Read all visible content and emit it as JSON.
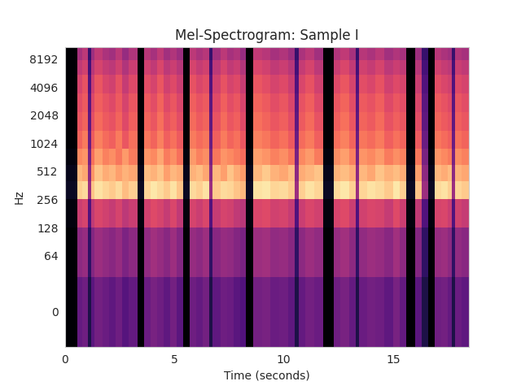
{
  "chart_data": {
    "type": "heatmap",
    "title": "Mel-Spectrogram: Sample I",
    "xlabel": "Time (seconds)",
    "ylabel": "Hz",
    "xlim": [
      0,
      18.47
    ],
    "xticks": [
      0,
      5,
      10,
      15
    ],
    "ylim": [
      -40,
      11025
    ],
    "yticks": [
      0,
      64,
      128,
      256,
      512,
      1024,
      2048,
      4096,
      8192
    ],
    "log": "y",
    "color": "magma",
    "zlim": [
      -80,
      0
    ],
    "x_edges": [
      0,
      0.55,
      0.8,
      1.05,
      1.2,
      1.35,
      1.7,
      2.0,
      2.3,
      2.6,
      2.9,
      3.3,
      3.6,
      3.9,
      4.2,
      4.5,
      4.8,
      5.1,
      5.4,
      5.7,
      6.0,
      6.3,
      6.6,
      6.75,
      7.1,
      7.4,
      7.7,
      8.0,
      8.25,
      8.6,
      9.0,
      9.4,
      9.8,
      10.2,
      10.5,
      10.7,
      11.0,
      11.4,
      11.8,
      12.3,
      12.6,
      13.0,
      13.3,
      13.45,
      13.8,
      14.2,
      14.6,
      15.0,
      15.3,
      15.6,
      16.0,
      16.3,
      16.6,
      16.9,
      17.2,
      17.5,
      17.7,
      17.85,
      18.15,
      18.47
    ],
    "y_edges": [
      -40,
      40,
      128,
      256,
      400,
      600,
      900,
      1400,
      2200,
      3500,
      5500,
      8000,
      11025
    ],
    "cells": [
      [
        -80,
        -56,
        -54,
        -70,
        -58,
        -53,
        -55,
        -57,
        -54,
        -59,
        -56,
        -80,
        -55,
        -52,
        -54,
        -57,
        -53,
        -58,
        -80,
        -54,
        -56,
        -53,
        -70,
        -57,
        -54,
        -55,
        -58,
        -60,
        -80,
        -53,
        -52,
        -55,
        -54,
        -57,
        -70,
        -56,
        -53,
        -55,
        -80,
        -54,
        -52,
        -56,
        -70,
        -55,
        -53,
        -54,
        -57,
        -52,
        -56,
        -80,
        -58,
        -70,
        -80,
        -54,
        -53,
        -56,
        -70,
        -55,
        -57
      ],
      [
        -80,
        -48,
        -46,
        -66,
        -50,
        -45,
        -47,
        -49,
        -46,
        -51,
        -48,
        -80,
        -47,
        -44,
        -46,
        -49,
        -45,
        -50,
        -80,
        -46,
        -48,
        -45,
        -66,
        -49,
        -46,
        -47,
        -50,
        -52,
        -80,
        -45,
        -44,
        -47,
        -46,
        -49,
        -66,
        -48,
        -45,
        -47,
        -80,
        -46,
        -44,
        -48,
        -66,
        -47,
        -45,
        -46,
        -49,
        -44,
        -48,
        -80,
        -50,
        -66,
        -80,
        -46,
        -45,
        -48,
        -66,
        -47,
        -49
      ],
      [
        -78,
        -36,
        -34,
        -60,
        -38,
        -33,
        -35,
        -37,
        -34,
        -39,
        -36,
        -78,
        -35,
        -32,
        -34,
        -37,
        -33,
        -38,
        -78,
        -34,
        -36,
        -33,
        -60,
        -37,
        -34,
        -35,
        -38,
        -40,
        -78,
        -33,
        -32,
        -35,
        -34,
        -37,
        -60,
        -36,
        -33,
        -35,
        -78,
        -34,
        -32,
        -36,
        -60,
        -35,
        -33,
        -34,
        -37,
        -32,
        -36,
        -78,
        -38,
        -60,
        -78,
        -34,
        -33,
        -36,
        -60,
        -35,
        -37
      ],
      [
        -75,
        -8,
        -6,
        -45,
        -10,
        -5,
        -7,
        -9,
        -6,
        -11,
        -8,
        -75,
        -7,
        -4,
        -6,
        -9,
        -5,
        -10,
        -75,
        -6,
        -8,
        -5,
        -45,
        -9,
        -6,
        -7,
        -10,
        -12,
        -75,
        -5,
        -4,
        -7,
        -6,
        -9,
        -45,
        -8,
        -5,
        -7,
        -75,
        -6,
        -4,
        -8,
        -45,
        -7,
        -5,
        -6,
        -9,
        -4,
        -8,
        -75,
        -10,
        -45,
        -75,
        -6,
        -5,
        -8,
        -45,
        -7,
        -9
      ],
      [
        -76,
        -12,
        -15,
        -48,
        -18,
        -10,
        -14,
        -12,
        -16,
        -13,
        -15,
        -76,
        -11,
        -13,
        -10,
        -16,
        -12,
        -14,
        -76,
        -13,
        -11,
        -15,
        -48,
        -12,
        -16,
        -10,
        -14,
        -17,
        -76,
        -12,
        -9,
        -13,
        -15,
        -11,
        -48,
        -14,
        -12,
        -10,
        -76,
        -13,
        -11,
        -14,
        -48,
        -12,
        -15,
        -10,
        -13,
        -11,
        -14,
        -76,
        -16,
        -48,
        -76,
        -12,
        -14,
        -11,
        -48,
        -13,
        -15
      ],
      [
        -78,
        -20,
        -18,
        -52,
        -24,
        -16,
        -21,
        -19,
        -23,
        -17,
        -22,
        -78,
        -18,
        -20,
        -15,
        -22,
        -19,
        -24,
        -78,
        -17,
        -21,
        -19,
        -52,
        -23,
        -18,
        -20,
        -22,
        -25,
        -78,
        -16,
        -18,
        -21,
        -19,
        -23,
        -52,
        -20,
        -17,
        -22,
        -78,
        -19,
        -16,
        -21,
        -52,
        -18,
        -20,
        -17,
        -22,
        -19,
        -21,
        -78,
        -23,
        -52,
        -78,
        -18,
        -20,
        -22,
        -52,
        -19,
        -21
      ],
      [
        -80,
        -26,
        -22,
        -55,
        -28,
        -21,
        -25,
        -27,
        -22,
        -29,
        -24,
        -80,
        -23,
        -26,
        -21,
        -27,
        -24,
        -28,
        -80,
        -22,
        -25,
        -23,
        -55,
        -27,
        -22,
        -26,
        -24,
        -29,
        -80,
        -21,
        -23,
        -26,
        -24,
        -28,
        -55,
        -25,
        -22,
        -27,
        -80,
        -24,
        -21,
        -26,
        -55,
        -23,
        -25,
        -22,
        -27,
        -24,
        -26,
        -80,
        -28,
        -55,
        -80,
        -23,
        -25,
        -27,
        -55,
        -24,
        -26
      ],
      [
        -80,
        -29,
        -26,
        -57,
        -31,
        -25,
        -28,
        -30,
        -26,
        -32,
        -27,
        -80,
        -26,
        -29,
        -24,
        -30,
        -27,
        -31,
        -80,
        -25,
        -28,
        -26,
        -57,
        -30,
        -25,
        -29,
        -27,
        -32,
        -80,
        -24,
        -26,
        -29,
        -27,
        -31,
        -57,
        -28,
        -25,
        -30,
        -80,
        -27,
        -24,
        -29,
        -57,
        -26,
        -28,
        -25,
        -30,
        -27,
        -29,
        -80,
        -31,
        -57,
        -80,
        -26,
        -28,
        -30,
        -57,
        -27,
        -29
      ],
      [
        -80,
        -31,
        -28,
        -58,
        -33,
        -27,
        -30,
        -32,
        -28,
        -34,
        -29,
        -80,
        -28,
        -31,
        -26,
        -32,
        -29,
        -33,
        -80,
        -27,
        -30,
        -28,
        -58,
        -32,
        -27,
        -31,
        -29,
        -34,
        -80,
        -26,
        -28,
        -31,
        -29,
        -33,
        -58,
        -30,
        -27,
        -32,
        -80,
        -29,
        -26,
        -31,
        -58,
        -28,
        -30,
        -27,
        -32,
        -29,
        -31,
        -80,
        -33,
        -58,
        -80,
        -28,
        -30,
        -32,
        -58,
        -29,
        -31
      ],
      [
        -80,
        -34,
        -30,
        -60,
        -36,
        -29,
        -33,
        -35,
        -30,
        -37,
        -32,
        -80,
        -31,
        -34,
        -29,
        -35,
        -32,
        -36,
        -80,
        -30,
        -33,
        -31,
        -60,
        -35,
        -30,
        -34,
        -32,
        -37,
        -80,
        -29,
        -31,
        -34,
        -32,
        -36,
        -60,
        -33,
        -30,
        -35,
        -80,
        -32,
        -29,
        -34,
        -60,
        -31,
        -33,
        -30,
        -35,
        -32,
        -34,
        -80,
        -36,
        -60,
        -80,
        -31,
        -33,
        -35,
        -60,
        -32,
        -34
      ],
      [
        -80,
        -38,
        -35,
        -62,
        -40,
        -34,
        -37,
        -39,
        -35,
        -41,
        -36,
        -80,
        -35,
        -38,
        -33,
        -39,
        -36,
        -40,
        -80,
        -34,
        -37,
        -35,
        -62,
        -39,
        -34,
        -38,
        -36,
        -41,
        -80,
        -33,
        -35,
        -38,
        -36,
        -40,
        -62,
        -37,
        -34,
        -39,
        -80,
        -36,
        -33,
        -38,
        -62,
        -35,
        -37,
        -34,
        -39,
        -36,
        -38,
        -80,
        -40,
        -62,
        -80,
        -35,
        -37,
        -39,
        -62,
        -36,
        -38
      ],
      [
        -80,
        -43,
        -39,
        -65,
        -45,
        -38,
        -42,
        -44,
        -39,
        -46,
        -41,
        -80,
        -40,
        -43,
        -38,
        -44,
        -41,
        -45,
        -80,
        -39,
        -42,
        -40,
        -65,
        -44,
        -39,
        -43,
        -41,
        -46,
        -80,
        -38,
        -40,
        -43,
        -41,
        -45,
        -65,
        -42,
        -39,
        -44,
        -80,
        -41,
        -38,
        -43,
        -65,
        -40,
        -42,
        -39,
        -44,
        -41,
        -43,
        -80,
        -45,
        -65,
        -80,
        -40,
        -42,
        -44,
        -65,
        -41,
        -43
      ]
    ]
  }
}
